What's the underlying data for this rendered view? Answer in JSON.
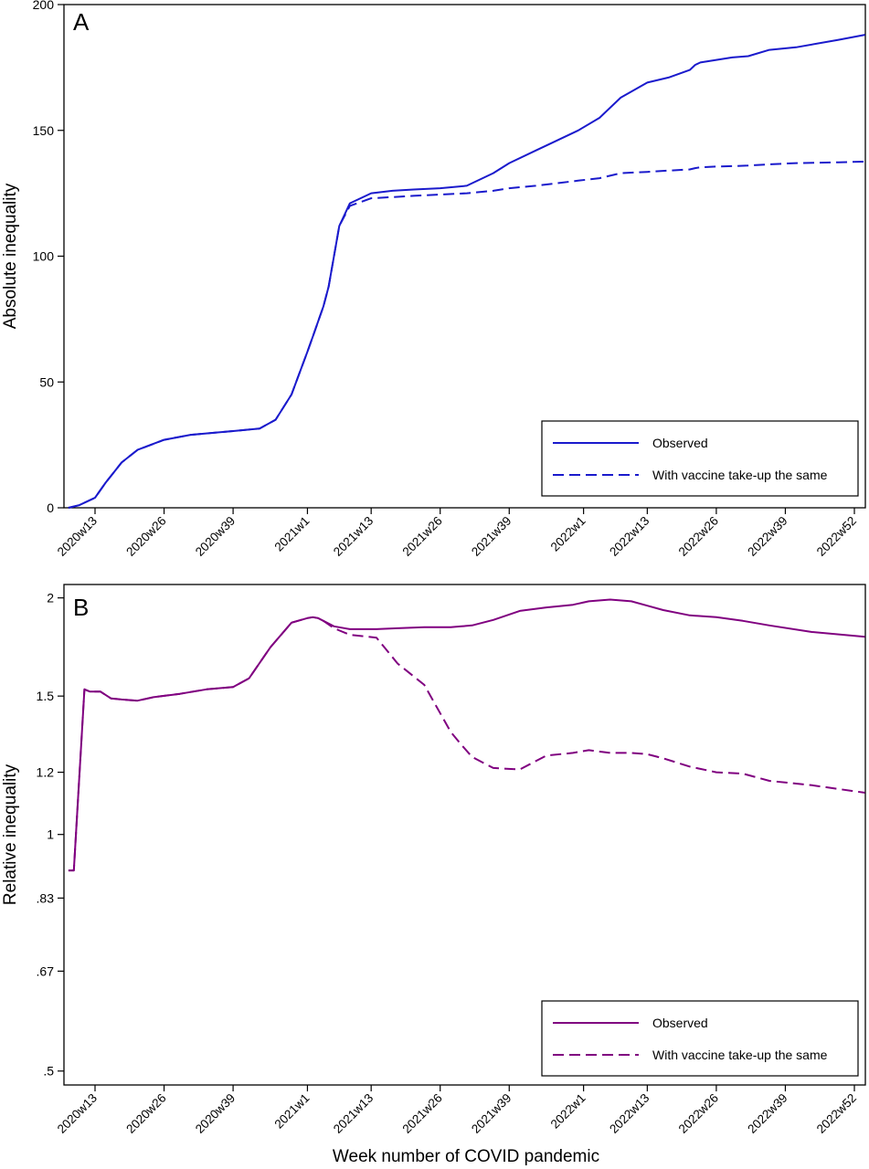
{
  "x_axis_label": "Week number of COVID pandemic",
  "x_ticks": [
    "2020w13",
    "2020w26",
    "2020w39",
    "2021w1",
    "2021w13",
    "2021w26",
    "2021w39",
    "2022w1",
    "2022w13",
    "2022w26",
    "2022w39",
    "2022w52"
  ],
  "chart_data": [
    {
      "panel": "A",
      "type": "line",
      "ylabel": "Absolute inequality",
      "ylim": [
        0,
        200
      ],
      "yticks": [
        0,
        50,
        100,
        150,
        200
      ],
      "ytick_labels": [
        "0",
        "50",
        "100",
        "150",
        "200"
      ],
      "color": "#1a1acc",
      "legend": {
        "position": "bottom-right"
      },
      "x": [
        8,
        10,
        13,
        15,
        18,
        21,
        26,
        31,
        39,
        44,
        47,
        50,
        53,
        54,
        55,
        56,
        57,
        58,
        59,
        61,
        65,
        69,
        73,
        78,
        83,
        88,
        91,
        96,
        100,
        104,
        108,
        112,
        117,
        121,
        125,
        126,
        127,
        130,
        133,
        136,
        140,
        145,
        153,
        158
      ],
      "series": [
        {
          "name": "Observed",
          "dash": "solid",
          "values": [
            0,
            1,
            4,
            10,
            18,
            23,
            27,
            29,
            30.5,
            31.5,
            35,
            45,
            62,
            68,
            74,
            80,
            88,
            100,
            112,
            121,
            125,
            126,
            126.5,
            127,
            128,
            133,
            137,
            142,
            146,
            150,
            155,
            163,
            169,
            171,
            174,
            176,
            177,
            178,
            179,
            179.5,
            182,
            183,
            186,
            188
          ]
        },
        {
          "name": "With vaccine take-up the same",
          "dash": "dashed",
          "values": [
            0,
            1,
            4,
            10,
            18,
            23,
            27,
            29,
            30.5,
            31.5,
            35,
            45,
            62,
            68,
            74,
            80,
            88,
            100,
            112,
            120,
            123,
            123.5,
            124,
            124.5,
            125,
            126,
            127,
            128,
            129,
            130,
            131,
            133,
            133.5,
            134,
            134.5,
            135,
            135.3,
            135.6,
            135.8,
            136,
            136.5,
            137,
            137.3,
            137.6
          ]
        }
      ]
    },
    {
      "panel": "B",
      "type": "line",
      "ylabel": "Relative inequality",
      "yscale": "log",
      "ylim": [
        0.48,
        2.08
      ],
      "yticks": [
        0.5,
        0.67,
        0.83,
        1,
        1.2,
        1.5,
        2
      ],
      "ytick_labels": [
        ".5",
        ".67",
        ".83",
        "1",
        "1.2",
        "1.5",
        "2"
      ],
      "color": "#800080",
      "legend": {
        "position": "bottom-right"
      },
      "x": [
        8,
        9,
        11,
        12,
        13,
        14,
        16,
        18,
        21,
        24,
        29,
        34,
        39,
        42,
        46,
        50,
        53,
        54,
        55,
        56,
        58,
        61,
        66,
        70,
        75,
        80,
        82,
        84,
        88,
        93,
        98,
        103,
        106,
        110,
        114,
        117,
        120,
        125,
        130,
        135,
        140,
        148,
        158
      ],
      "series": [
        {
          "name": "Observed",
          "dash": "solid",
          "values": [
            0.9,
            0.9,
            1.53,
            1.52,
            1.52,
            1.52,
            1.49,
            1.485,
            1.48,
            1.495,
            1.51,
            1.53,
            1.54,
            1.58,
            1.73,
            1.86,
            1.885,
            1.89,
            1.885,
            1.87,
            1.84,
            1.825,
            1.825,
            1.83,
            1.835,
            1.835,
            1.84,
            1.845,
            1.875,
            1.925,
            1.945,
            1.96,
            1.98,
            1.99,
            1.98,
            1.955,
            1.93,
            1.9,
            1.89,
            1.87,
            1.845,
            1.81,
            1.785
          ]
        },
        {
          "name": "With vaccine take-up the same",
          "dash": "dashed",
          "values": [
            0.9,
            0.9,
            1.53,
            1.52,
            1.52,
            1.52,
            1.49,
            1.485,
            1.48,
            1.495,
            1.51,
            1.53,
            1.54,
            1.58,
            1.73,
            1.86,
            1.885,
            1.89,
            1.885,
            1.87,
            1.83,
            1.795,
            1.78,
            1.65,
            1.55,
            1.35,
            1.3,
            1.255,
            1.215,
            1.21,
            1.26,
            1.27,
            1.28,
            1.27,
            1.27,
            1.265,
            1.25,
            1.22,
            1.2,
            1.195,
            1.17,
            1.155,
            1.13
          ]
        }
      ]
    }
  ]
}
